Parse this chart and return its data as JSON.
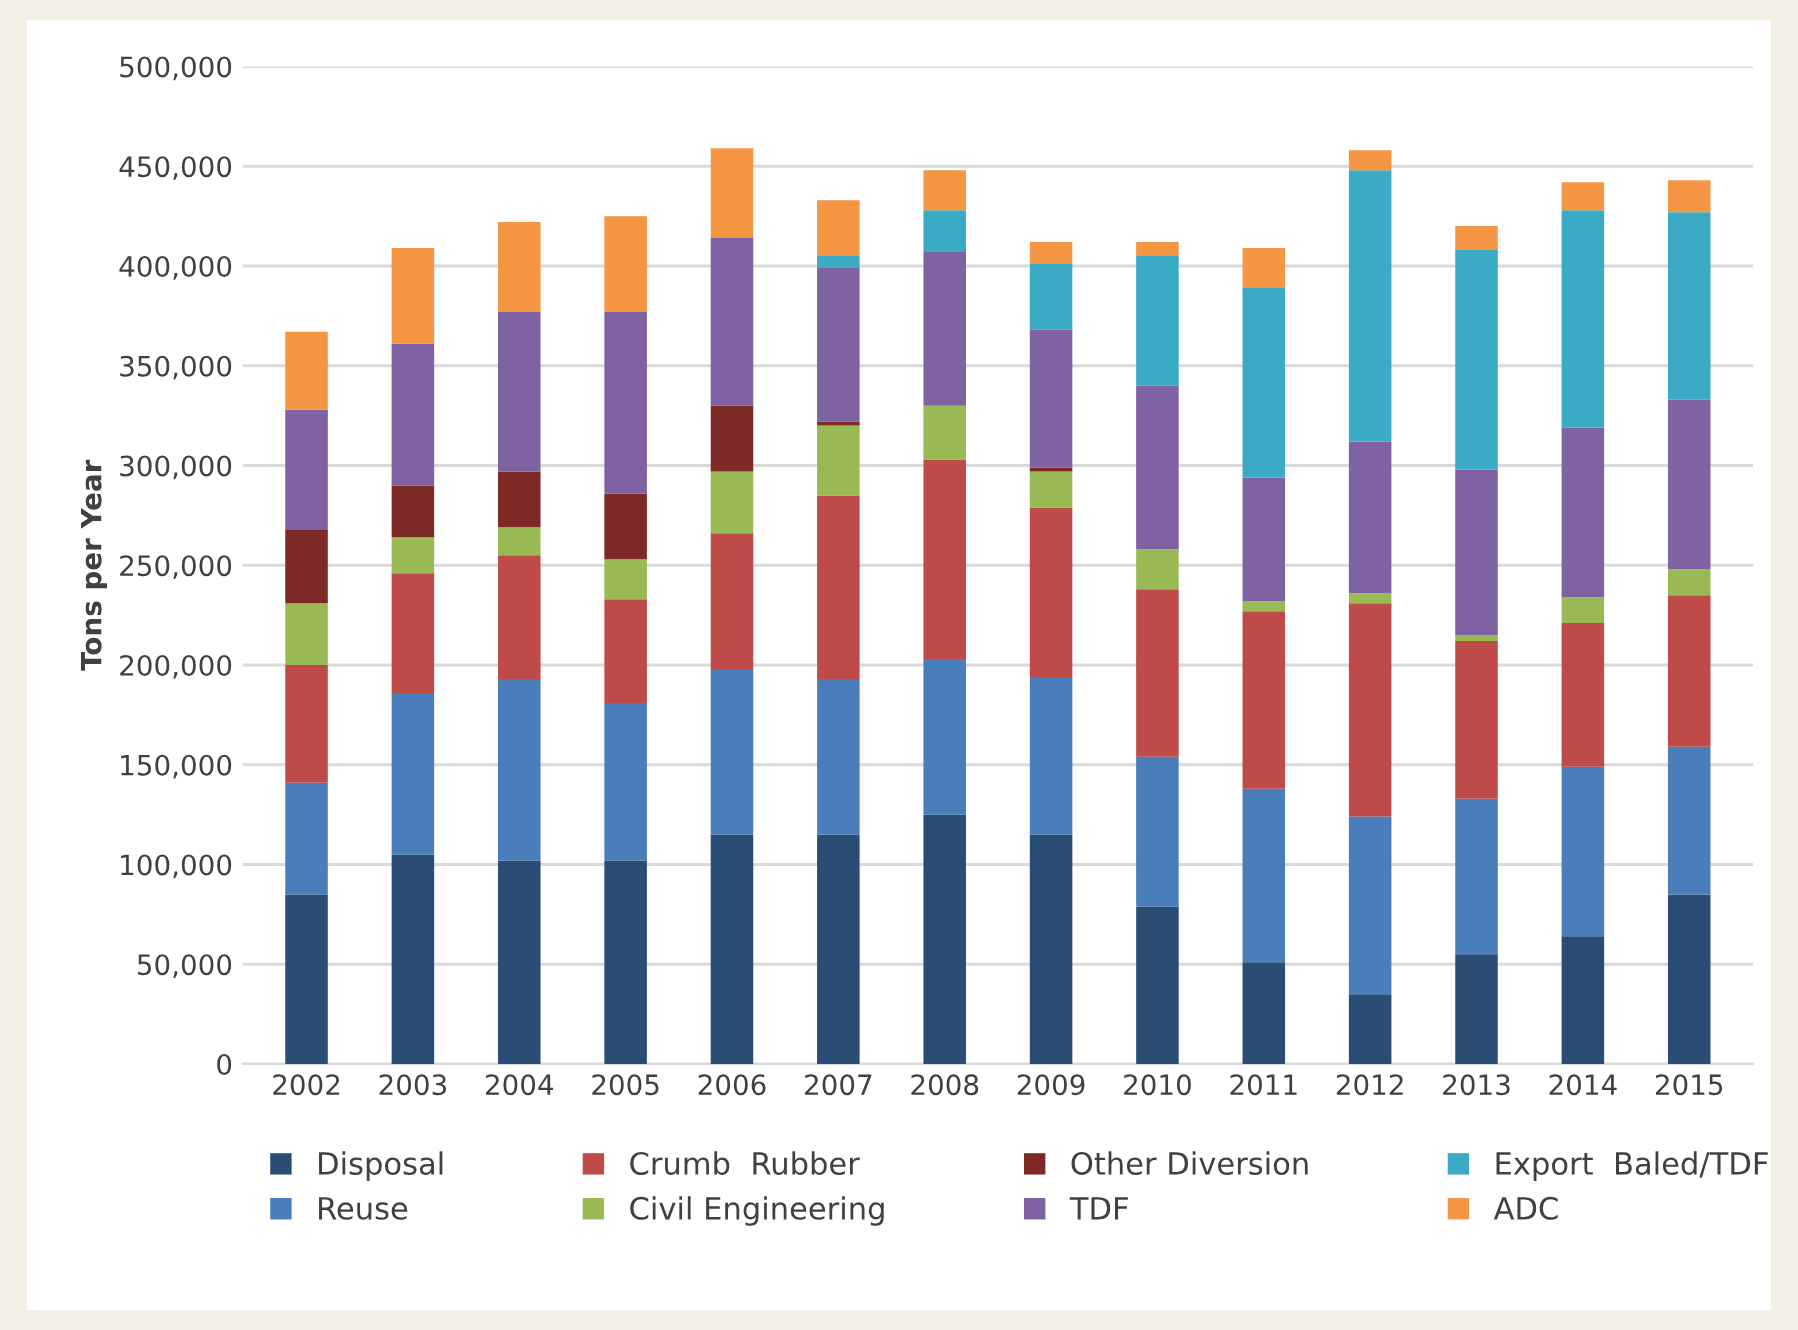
{
  "chart_data": {
    "type": "bar",
    "stacked": true,
    "ylabel": "Tons per Year",
    "categories": [
      "2002",
      "2003",
      "2004",
      "2005",
      "2006",
      "2007",
      "2008",
      "2009",
      "2010",
      "2011",
      "2012",
      "2013",
      "2014",
      "2015"
    ],
    "series": [
      {
        "name": "Disposal",
        "color": "#2a4d76",
        "values": [
          85000,
          105000,
          102000,
          102000,
          115000,
          115000,
          125000,
          115000,
          79000,
          51000,
          35000,
          55000,
          64000,
          85000
        ]
      },
      {
        "name": "Reuse",
        "color": "#4a7ebb",
        "values": [
          56000,
          81000,
          91000,
          79000,
          83000,
          78000,
          78000,
          79000,
          75000,
          87000,
          89000,
          78000,
          85000,
          74000
        ]
      },
      {
        "name": "Crumb  Rubber",
        "color": "#be4b48",
        "values": [
          59000,
          60000,
          62000,
          52000,
          68000,
          92000,
          100000,
          85000,
          84000,
          89000,
          107000,
          79000,
          72000,
          76000
        ]
      },
      {
        "name": "Civil Engineering",
        "color": "#98b954",
        "values": [
          31000,
          18000,
          14000,
          20000,
          31000,
          35000,
          27000,
          18000,
          20000,
          5000,
          5000,
          3000,
          13000,
          13000
        ]
      },
      {
        "name": "Other Diversion",
        "color": "#7d2a27",
        "values": [
          37000,
          26000,
          28000,
          33000,
          33000,
          2000,
          0,
          2000,
          0,
          0,
          0,
          0,
          0,
          0
        ]
      },
      {
        "name": "TDF",
        "color": "#7f62a1",
        "values": [
          60000,
          71000,
          80000,
          91000,
          84000,
          77000,
          77000,
          69000,
          82000,
          62000,
          76000,
          83000,
          85000,
          85000
        ]
      },
      {
        "name": "Export  Baled/TDF",
        "color": "#3baac5",
        "values": [
          0,
          0,
          0,
          0,
          0,
          6000,
          21000,
          33000,
          65000,
          95000,
          136000,
          110000,
          109000,
          94000
        ]
      },
      {
        "name": "ADC",
        "color": "#f59645",
        "values": [
          39000,
          48000,
          45000,
          48000,
          45000,
          28000,
          20000,
          11000,
          7000,
          20000,
          10000,
          12000,
          14000,
          16000
        ]
      }
    ],
    "ylim": [
      0,
      500000
    ],
    "yticks": [
      {
        "value": 0,
        "label": "0"
      },
      {
        "value": 50000,
        "label": "50,000"
      },
      {
        "value": 100000,
        "label": "100,000"
      },
      {
        "value": 150000,
        "label": "150,000"
      },
      {
        "value": 200000,
        "label": "200,000"
      },
      {
        "value": 250000,
        "label": "250,000"
      },
      {
        "value": 300000,
        "label": "300,000"
      },
      {
        "value": 350000,
        "label": "350,000"
      },
      {
        "value": 400000,
        "label": "400,000"
      },
      {
        "value": 450000,
        "label": "450,000"
      },
      {
        "value": 500000,
        "label": "500,000"
      }
    ],
    "grid": "y",
    "legend": "bottom"
  }
}
